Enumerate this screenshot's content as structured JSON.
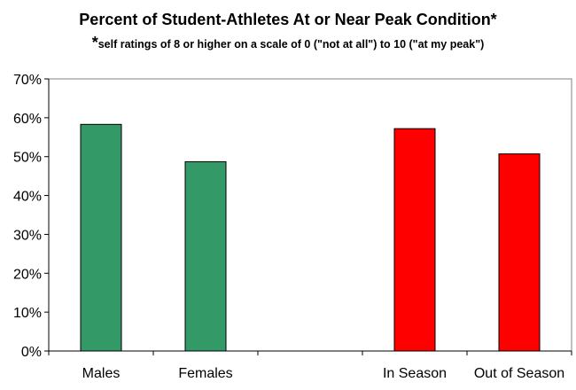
{
  "chart_data": {
    "type": "bar",
    "title": "Percent of Student-Athletes At or Near Peak Condition*",
    "subtitle_star": "*",
    "subtitle": "self ratings of 8 or higher on a scale of 0 (\"not at all\") to 10 (\"at my peak\")",
    "xlabel": "",
    "ylabel": "",
    "categories": [
      "Males",
      "Females",
      "",
      "In Season",
      "Out of Season"
    ],
    "values": [
      58.3,
      48.7,
      null,
      57.2,
      50.7
    ],
    "bar_colors": [
      "#339966",
      "#339966",
      null,
      "#ff0000",
      "#ff0000"
    ],
    "ylim": [
      0,
      70
    ],
    "yticks": [
      0,
      10,
      20,
      30,
      40,
      50,
      60,
      70
    ],
    "ytick_labels": [
      "0%",
      "10%",
      "20%",
      "30%",
      "40%",
      "50%",
      "60%",
      "70%"
    ],
    "grid": false,
    "legend": "none"
  }
}
